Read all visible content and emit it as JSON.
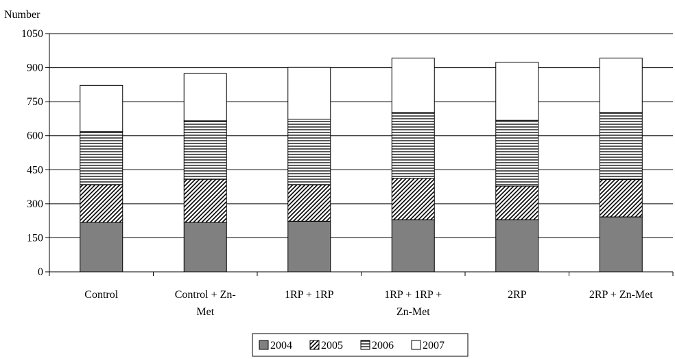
{
  "chart_data": {
    "type": "bar",
    "stacked": true,
    "ylabel": "Number",
    "ylim": [
      0,
      1050
    ],
    "yticks": [
      0,
      150,
      300,
      450,
      600,
      750,
      900,
      1050
    ],
    "grid": true,
    "legend_position": "bottom",
    "categories": [
      [
        "Control"
      ],
      [
        "Control + Zn-",
        "Met"
      ],
      [
        "1RP + 1RP"
      ],
      [
        "1RP + 1RP +",
        "Zn-Met"
      ],
      [
        "2RP"
      ],
      [
        "2RP + Zn-Met"
      ]
    ],
    "series": [
      {
        "name": "2004",
        "values": [
          218,
          218,
          223,
          230,
          230,
          242
        ]
      },
      {
        "name": "2005",
        "values": [
          165,
          190,
          160,
          182,
          148,
          165
        ]
      },
      {
        "name": "2006",
        "values": [
          235,
          258,
          290,
          290,
          290,
          295
        ]
      },
      {
        "name": "2007",
        "values": [
          204,
          208,
          228,
          240,
          256,
          240
        ]
      }
    ]
  }
}
